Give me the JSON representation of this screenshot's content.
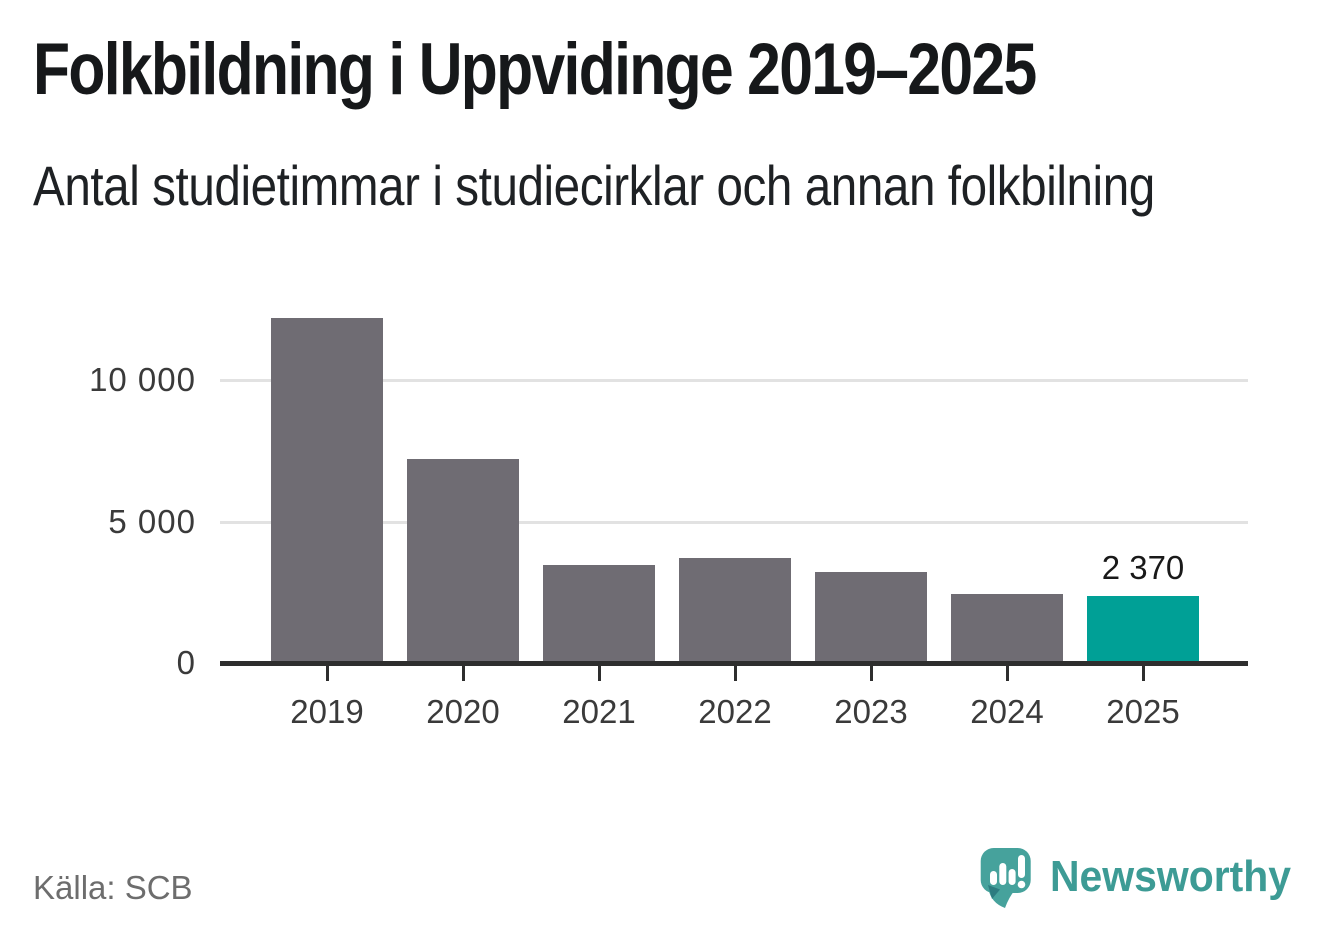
{
  "header": {
    "title": "Folkbildning i Uppvidinge 2019–2025",
    "subtitle": "Antal studietimmar i studiecirklar och annan folkbilning"
  },
  "chart_data": {
    "type": "bar",
    "title": "Folkbildning i Uppvidinge 2019–2025",
    "subtitle": "Antal studietimmar i studiecirklar och annan folkbilning",
    "categories": [
      "2019",
      "2020",
      "2021",
      "2022",
      "2023",
      "2024",
      "2025"
    ],
    "values": [
      12200,
      7200,
      3450,
      3700,
      3200,
      2450,
      2370
    ],
    "highlighted_index": 6,
    "annotation": {
      "index": 6,
      "label": "2 370"
    },
    "y_ticks": [
      {
        "label": "10 000",
        "value": 10000
      },
      {
        "label": "5 000",
        "value": 5000
      },
      {
        "label": "0",
        "value": 0
      }
    ],
    "ylim": [
      0,
      12850
    ],
    "grid": "horizontal",
    "legend": "none",
    "xlabel": "",
    "ylabel": "",
    "bar_color": "#6f6c73",
    "highlight_color": "#00a096",
    "axis_color": "#2e2e2e",
    "gridline_color": "#e2e2e2"
  },
  "footer": {
    "source": "Källa: SCB",
    "brand": "Newsworthy",
    "brand_color": "#3d9b95"
  }
}
